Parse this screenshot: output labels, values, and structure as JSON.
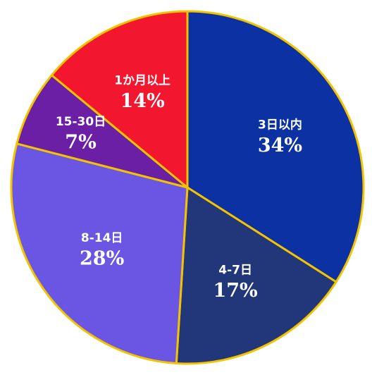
{
  "chart_data": {
    "type": "pie",
    "categories": [
      "3日以内",
      "4-7日",
      "8-14日",
      "15-30日",
      "1か月以上"
    ],
    "values": [
      34,
      17,
      28,
      7,
      14
    ],
    "value_labels": [
      "34%",
      "17%",
      "28%",
      "7%",
      "14%"
    ],
    "colors": [
      "#0c31a2",
      "#22367a",
      "#6b56e3",
      "#6a1fa4",
      "#f2162f"
    ],
    "border_color": "#f4c300"
  }
}
